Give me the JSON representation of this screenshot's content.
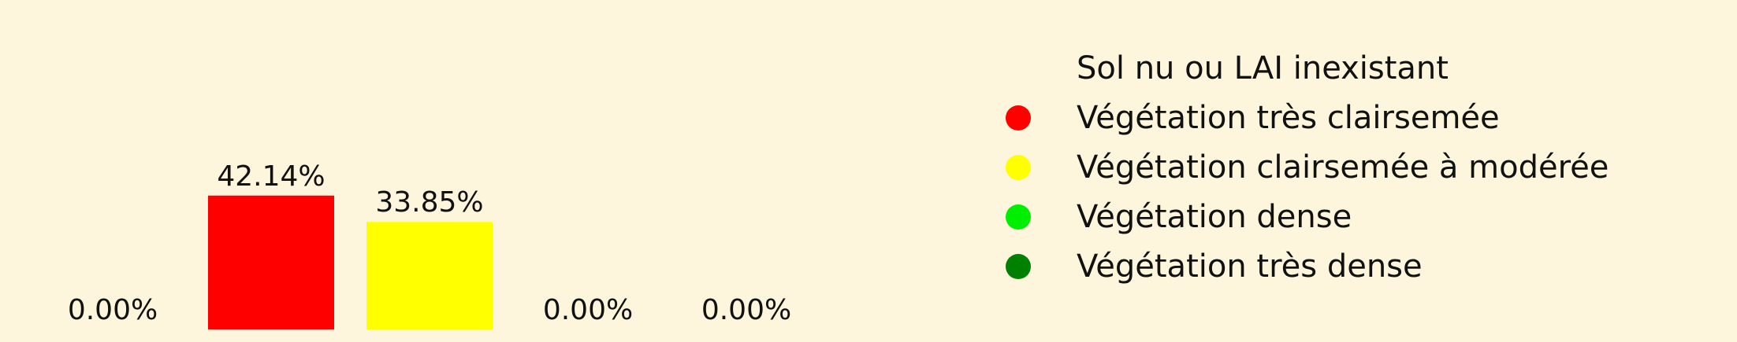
{
  "chart_data": {
    "type": "bar",
    "categories": [
      "Sol nu ou LAI inexistant",
      "Végétation très clairsemée",
      "Végétation clairsemée à modérée",
      "Végétation dense",
      "Végétation très dense"
    ],
    "values": [
      0.0,
      42.14,
      33.85,
      0.0,
      0.0
    ],
    "value_labels": [
      "0.00%",
      "42.14%",
      "33.85%",
      "0.00%",
      "0.00%"
    ],
    "colors": [
      "#fdf6dc",
      "#ff0000",
      "#ffff00",
      "#00ee00",
      "#008000"
    ],
    "ylim": [
      0,
      100
    ],
    "grid": false,
    "legend_position": "right",
    "background": "#fdf6dc"
  }
}
